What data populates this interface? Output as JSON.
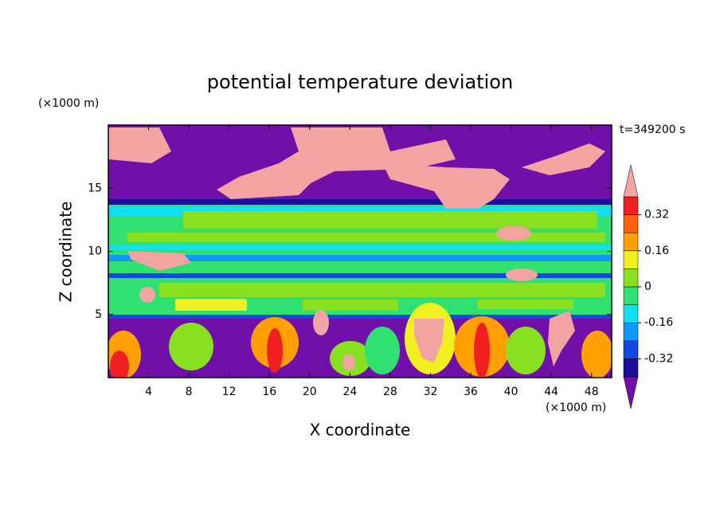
{
  "chart_data": {
    "type": "contourf",
    "title": "potential temperature deviation",
    "x_label": "X coordinate",
    "y_label": "Z coordinate",
    "x_unit": "(×1000 m)",
    "y_unit": "(×1000 m)",
    "annotation": "t=349200 s",
    "xlim": [
      0,
      50
    ],
    "ylim": [
      0,
      20
    ],
    "xticks": [
      4,
      8,
      12,
      16,
      20,
      24,
      28,
      32,
      36,
      40,
      44,
      48
    ],
    "yticks": [
      5,
      10,
      15
    ],
    "colorbar": {
      "levels": [
        -0.4,
        -0.32,
        -0.24,
        -0.16,
        -0.08,
        0,
        0.08,
        0.16,
        0.24,
        0.32,
        0.4
      ],
      "colors": [
        "#7010a8",
        "#1a109c",
        "#1048e0",
        "#1098ff",
        "#10e0f0",
        "#30e070",
        "#88e020",
        "#f0f020",
        "#ffa000",
        "#ff6010",
        "#f02020",
        "#f4a3a3"
      ],
      "ticks": [
        -0.32,
        -0.16,
        0,
        0.16,
        0.32
      ]
    }
  }
}
